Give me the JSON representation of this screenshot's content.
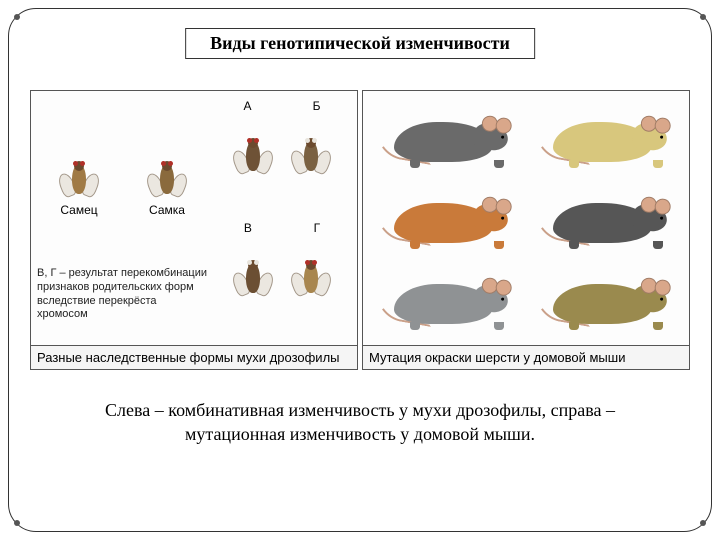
{
  "title": "Виды генотипической изменчивости",
  "left_panel": {
    "caption": "Разные наследственные формы мухи дрозофилы",
    "labels": {
      "male": "Самец",
      "female": "Самка",
      "A": "А",
      "B": "Б",
      "V": "В",
      "G": "Г"
    },
    "note": "В, Г – результат перекомбинации признаков родительских форм вследствие перекрёста хромосом",
    "fly_colors": {
      "male_body": "#a07a45",
      "female_body": "#8a6a3d",
      "A_body": "#6e5236",
      "B_body": "#7a6142",
      "V_body": "#6b4f33",
      "G_body": "#a8864f",
      "eye_red": "#b03028",
      "eye_white": "#e8e4dc"
    }
  },
  "right_panel": {
    "caption": "Мутация окраски шерсти у домовой мыши",
    "mouse_colors": [
      "#6a6a6a",
      "#d8c77d",
      "#c97a3a",
      "#565656",
      "#8f9294",
      "#9a8a4e"
    ],
    "tail_color": "#caa089"
  },
  "bottom_caption": "Слева – комбинативная изменчивость у мухи дрозофилы, справа – мутационная изменчивость у домовой мыши.",
  "style": {
    "background": "#ffffff",
    "border_color": "#333333",
    "title_fontsize": 18,
    "caption_fontsize": 13,
    "bottom_fontsize": 18
  }
}
